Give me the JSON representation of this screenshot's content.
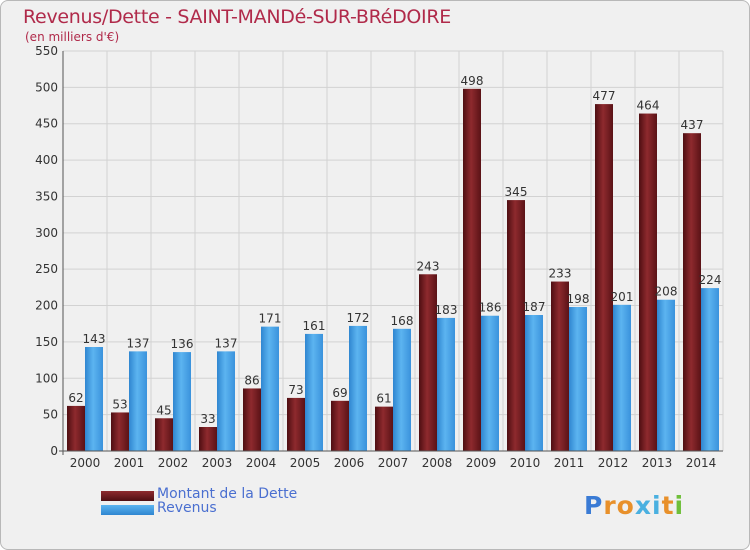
{
  "chart_data": {
    "type": "bar",
    "title": "Revenus/Dette - SAINT-MANDé-SUR-BRéDOIRE",
    "subtitle": "(en milliers d'€)",
    "categories": [
      "2000",
      "2001",
      "2002",
      "2003",
      "2004",
      "2005",
      "2006",
      "2007",
      "2008",
      "2009",
      "2010",
      "2011",
      "2012",
      "2013",
      "2014"
    ],
    "series": [
      {
        "name": "Montant de la Dette",
        "color": "#7a1e22",
        "values": [
          62,
          53,
          45,
          33,
          86,
          73,
          69,
          61,
          243,
          498,
          345,
          233,
          477,
          464,
          437
        ]
      },
      {
        "name": "Revenus",
        "color": "#4aa3e8",
        "values": [
          143,
          137,
          136,
          137,
          171,
          161,
          172,
          168,
          183,
          186,
          187,
          198,
          201,
          208,
          224
        ]
      }
    ],
    "ylim": [
      0,
      550
    ],
    "yticks": [
      "0",
      "50",
      "100",
      "150",
      "200",
      "250",
      "300",
      "350",
      "400",
      "450",
      "500",
      "550"
    ],
    "grid": true,
    "legend_position": "bottom-left"
  },
  "branding": {
    "logo_letters": [
      "P",
      "r",
      "o",
      "x",
      "i",
      "t",
      "i"
    ],
    "logo_colors": [
      "#3a7bd5",
      "#e8902a",
      "#e8902a",
      "#4ab0e0",
      "#4ab0e0",
      "#e8902a",
      "#6fbf3a"
    ]
  }
}
